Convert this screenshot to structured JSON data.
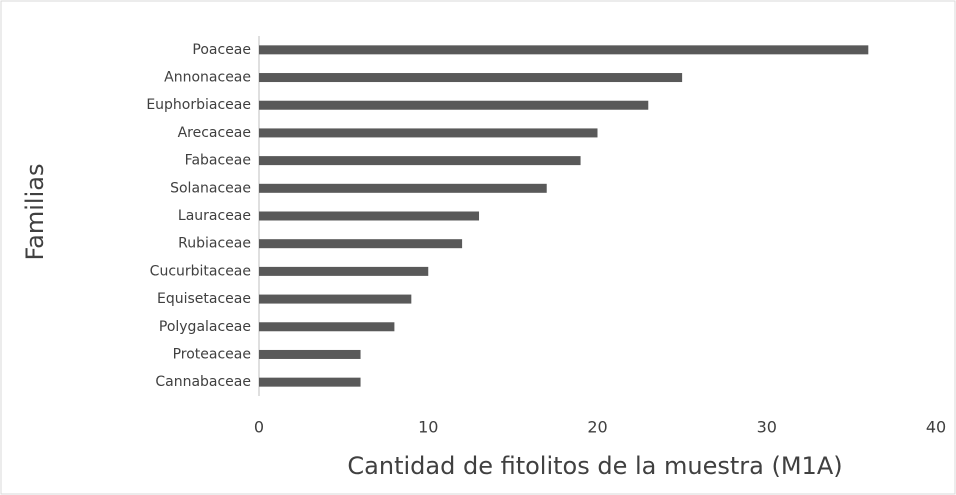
{
  "chart_data": {
    "type": "bar",
    "orientation": "horizontal",
    "x_label": "Cantidad de fitolitos de la muestra (M1A)",
    "y_label": "Familias",
    "categories": [
      "Poaceae",
      "Annonaceae",
      "Euphorbiaceae",
      "Arecaceae",
      "Fabaceae",
      "Solanaceae",
      "Lauraceae",
      "Rubiaceae",
      "Cucurbitaceae",
      "Equisetaceae",
      "Polygalaceae",
      "Proteaceae",
      "Cannabaceae"
    ],
    "values": [
      36,
      25,
      23,
      20,
      19,
      17,
      13,
      12,
      10,
      9,
      8,
      6,
      6
    ],
    "color": "#595959",
    "xlim": [
      0,
      40
    ],
    "xticks": [
      0,
      10,
      20,
      30,
      40
    ],
    "grid": false
  }
}
